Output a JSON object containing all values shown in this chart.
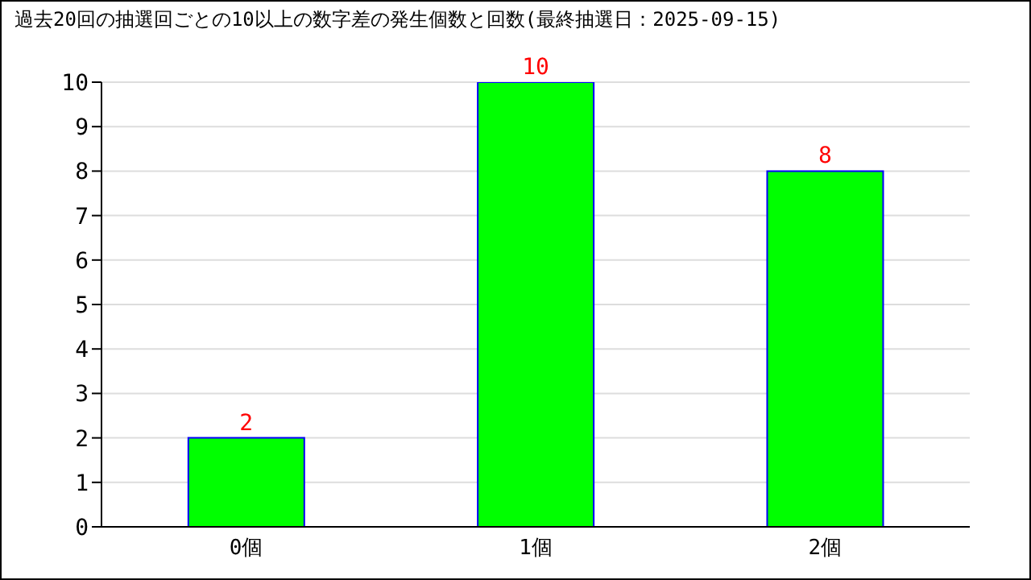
{
  "chart_data": {
    "type": "bar",
    "title": "過去20回の抽選回ごとの10以上の数字差の発生個数と回数(最終抽選日：2025-09-15)",
    "categories": [
      "0個",
      "1個",
      "2個"
    ],
    "series": [
      {
        "color": "#00ff00",
        "values": [
          2,
          10,
          8
        ]
      }
    ],
    "ylim": [
      0,
      10
    ],
    "yticks": [
      0,
      1,
      2,
      3,
      4,
      5,
      6,
      7,
      8,
      9,
      10
    ],
    "grid": "y",
    "data_labels": true,
    "legend": false
  }
}
